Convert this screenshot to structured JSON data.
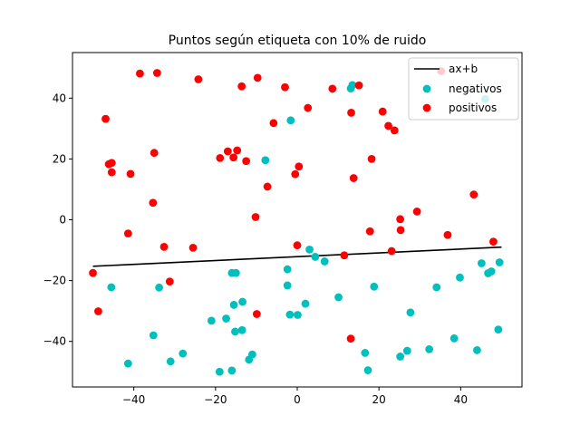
{
  "chart_data": {
    "type": "scatter",
    "title": "Puntos según etiqueta con 10% de ruido",
    "xlabel": "",
    "ylabel": "",
    "xlim": [
      -55,
      55
    ],
    "ylim": [
      -55,
      55
    ],
    "xticks": [
      -40,
      -20,
      0,
      20,
      40
    ],
    "yticks": [
      -40,
      -20,
      0,
      20,
      40
    ],
    "grid": false,
    "legend_position": "top-right",
    "line": {
      "name": "ax+b",
      "color": "#000000",
      "points": [
        [
          -50,
          -15.3
        ],
        [
          50,
          -9.0
        ]
      ]
    },
    "series": [
      {
        "name": "negativos",
        "color": "#00bfbf",
        "points": [
          [
            13.5,
            44.3
          ],
          [
            13.1,
            43.2
          ],
          [
            -1.6,
            32.7
          ],
          [
            -7.8,
            19.6
          ],
          [
            46.0,
            39.7
          ],
          [
            -45.5,
            -22.2
          ],
          [
            -33.8,
            -22.3
          ],
          [
            -41.4,
            -47.3
          ],
          [
            -35.2,
            -38.0
          ],
          [
            -31.0,
            -46.6
          ],
          [
            -28.0,
            -44.0
          ],
          [
            -21.0,
            -33.2
          ],
          [
            -19.0,
            -50.0
          ],
          [
            -17.4,
            -32.5
          ],
          [
            -16.0,
            -17.5
          ],
          [
            -15.0,
            -17.5
          ],
          [
            -15.5,
            -28.0
          ],
          [
            -15.2,
            -36.8
          ],
          [
            -16.0,
            -49.6
          ],
          [
            -13.4,
            -27.0
          ],
          [
            -13.5,
            -36.3
          ],
          [
            -11.8,
            -46.0
          ],
          [
            -11.0,
            -44.3
          ],
          [
            -2.4,
            -16.3
          ],
          [
            -2.4,
            -21.6
          ],
          [
            -1.8,
            -31.2
          ],
          [
            0.1,
            -31.3
          ],
          [
            2.0,
            -27.6
          ],
          [
            3.0,
            -9.8
          ],
          [
            4.4,
            -12.2
          ],
          [
            6.7,
            -13.7
          ],
          [
            10.1,
            -25.5
          ],
          [
            16.6,
            -43.8
          ],
          [
            17.3,
            -49.5
          ],
          [
            18.8,
            -22.0
          ],
          [
            25.2,
            -45.0
          ],
          [
            26.9,
            -43.1
          ],
          [
            27.7,
            -30.5
          ],
          [
            32.3,
            -42.6
          ],
          [
            34.1,
            -22.2
          ],
          [
            38.4,
            -39.0
          ],
          [
            39.8,
            -19.0
          ],
          [
            44.0,
            -42.9
          ],
          [
            45.1,
            -14.3
          ],
          [
            46.7,
            -17.6
          ],
          [
            47.5,
            -17.0
          ],
          [
            49.2,
            -36.1
          ],
          [
            49.5,
            -14.0
          ]
        ]
      },
      {
        "name": "positivos",
        "color": "#ff0000",
        "points": [
          [
            -38.5,
            48.1
          ],
          [
            -34.3,
            48.3
          ],
          [
            -24.2,
            46.2
          ],
          [
            -13.6,
            43.9
          ],
          [
            -9.7,
            46.7
          ],
          [
            -3.0,
            43.6
          ],
          [
            8.6,
            43.1
          ],
          [
            15.1,
            44.2
          ],
          [
            13.2,
            35.2
          ],
          [
            20.9,
            35.6
          ],
          [
            22.3,
            30.9
          ],
          [
            23.8,
            29.4
          ],
          [
            -46.9,
            33.2
          ],
          [
            -5.8,
            31.8
          ],
          [
            2.6,
            36.8
          ],
          [
            -45.4,
            18.7
          ],
          [
            -46.1,
            18.3
          ],
          [
            -45.4,
            15.6
          ],
          [
            -40.8,
            15.1
          ],
          [
            -35.0,
            22.0
          ],
          [
            -18.9,
            20.3
          ],
          [
            -17.0,
            22.5
          ],
          [
            -15.6,
            20.5
          ],
          [
            -14.7,
            22.8
          ],
          [
            -12.5,
            19.3
          ],
          [
            -7.3,
            10.9
          ],
          [
            -0.5,
            15.0
          ],
          [
            0.4,
            17.5
          ],
          [
            13.8,
            13.7
          ],
          [
            18.2,
            20.0
          ],
          [
            -35.3,
            5.6
          ],
          [
            -10.2,
            0.9
          ],
          [
            25.2,
            0.2
          ],
          [
            29.3,
            2.7
          ],
          [
            43.2,
            8.3
          ],
          [
            -41.4,
            -4.5
          ],
          [
            -32.6,
            -8.9
          ],
          [
            -25.5,
            -9.2
          ],
          [
            0.0,
            -8.4
          ],
          [
            11.5,
            -11.7
          ],
          [
            17.8,
            -3.8
          ],
          [
            23.1,
            -10.3
          ],
          [
            25.3,
            -3.4
          ],
          [
            36.8,
            -5.0
          ],
          [
            48.0,
            -7.2
          ],
          [
            -50.0,
            -17.5
          ],
          [
            -31.2,
            -20.3
          ],
          [
            -48.7,
            -30.1
          ],
          [
            -9.9,
            -31.0
          ],
          [
            13.1,
            -39.1
          ],
          [
            35.2,
            48.9
          ]
        ]
      }
    ]
  }
}
